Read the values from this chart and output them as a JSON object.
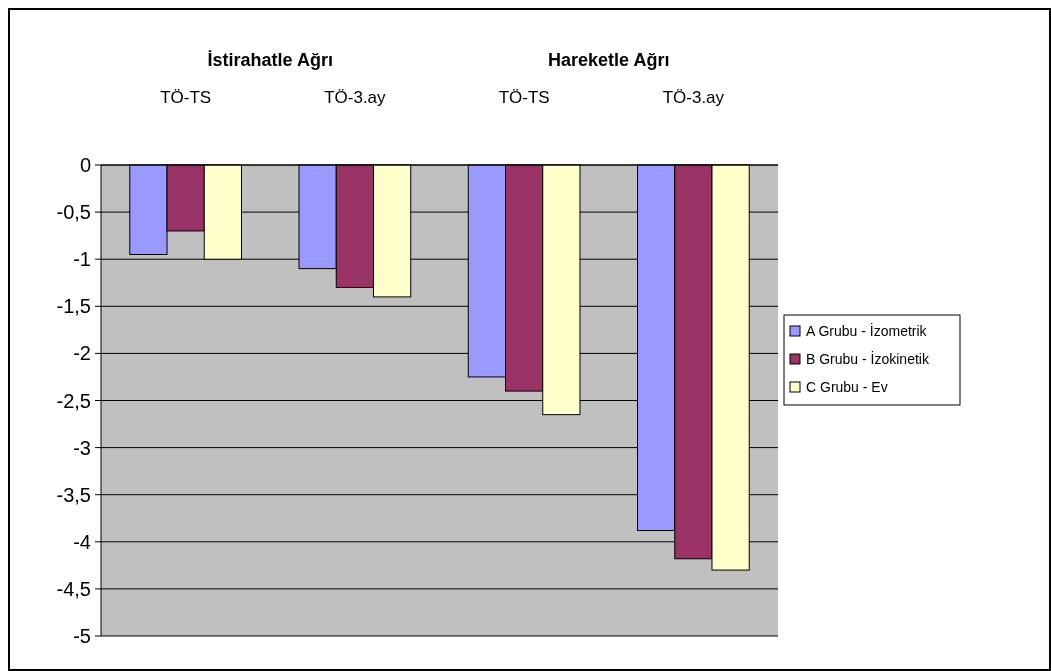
{
  "chart_data": {
    "type": "bar",
    "categories": [
      "TÖ-TS",
      "TÖ-3.ay",
      "TÖ-TS",
      "TÖ-3.ay"
    ],
    "annotations": [
      "İstirahatle Ağrı",
      "Hareketle Ağrı"
    ],
    "series": [
      {
        "name": "A Grubu - İzometrik",
        "color": "#9999ff",
        "values": [
          -0.95,
          -1.1,
          -2.25,
          -3.88
        ]
      },
      {
        "name": "B Grubu - İzokinetik",
        "color": "#993366",
        "values": [
          -0.7,
          -1.3,
          -2.4,
          -4.18
        ]
      },
      {
        "name": "C Grubu - Ev",
        "color": "#ffffcc",
        "values": [
          -1.0,
          -1.4,
          -2.65,
          -4.3
        ]
      }
    ],
    "ylim": [
      -5,
      0
    ],
    "yticks": [
      0,
      {
        "value": -0.5,
        "label": "-0,5"
      },
      -1,
      {
        "value": -1.5,
        "label": "-1,5"
      },
      -2,
      {
        "value": -2.5,
        "label": "-2,5"
      },
      -3,
      {
        "value": -3.5,
        "label": "-3,5"
      },
      -4,
      {
        "value": -4.5,
        "label": "-4,5"
      },
      -5
    ],
    "grid": "y",
    "legend": "right"
  }
}
